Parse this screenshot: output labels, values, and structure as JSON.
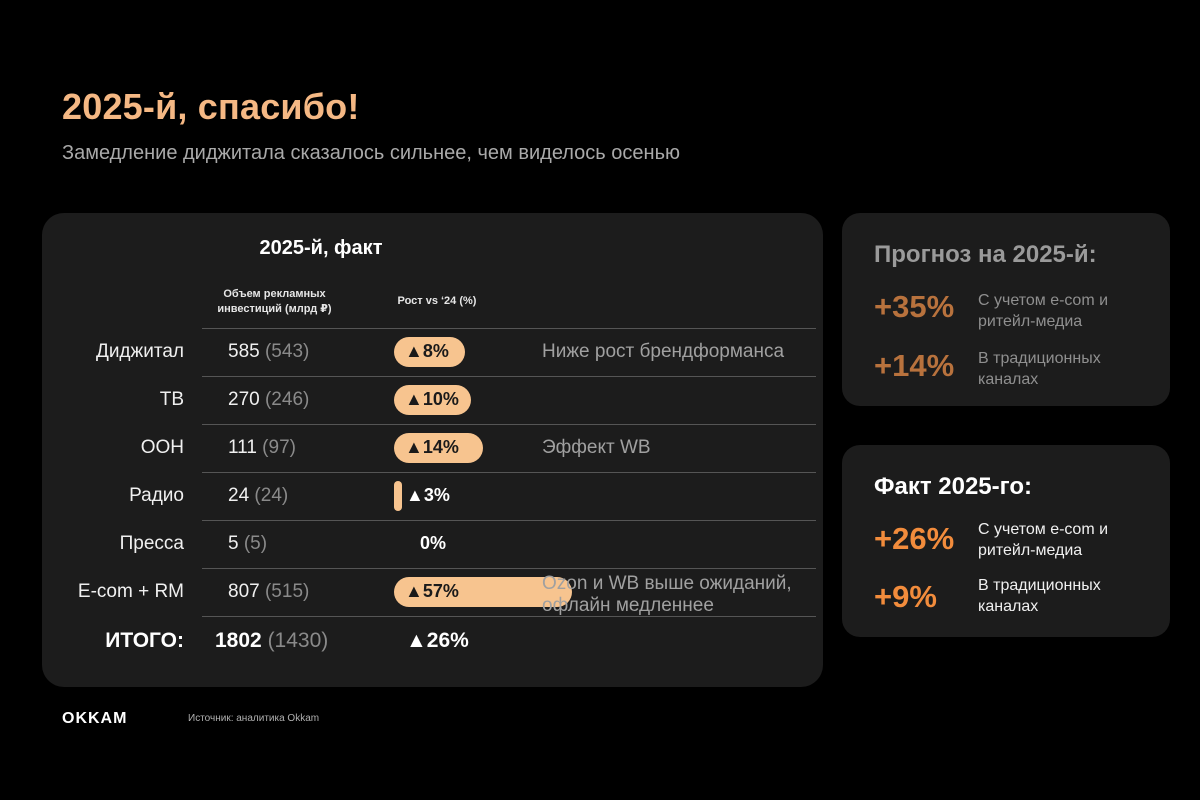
{
  "title": "2025-й, спасибо!",
  "subtitle": "Замедление диджитала сказалось сильнее, чем виделось осенью",
  "colors": {
    "accent": "#f5b884",
    "pill": "#f7c48f",
    "fact_accent": "#f28c3c",
    "forecast_accent": "#b8723d",
    "panel": "#1c1c1c"
  },
  "table": {
    "heading": "2025-й, факт",
    "col_value_header": "Объем рекламных инвестиций (млрд ₽)",
    "col_growth_header": "Рост  vs ‘24 (%)",
    "rows": [
      {
        "name": "Диджитал",
        "value": "585",
        "prev": "(543)",
        "growth_label": "▲8%",
        "growth_pct": 8,
        "note": "Ниже рост брендформанса"
      },
      {
        "name": "ТВ",
        "value": "270",
        "prev": "(246)",
        "growth_label": "▲10%",
        "growth_pct": 10,
        "note": ""
      },
      {
        "name": "OOH",
        "value": "111",
        "prev": "(97)",
        "growth_label": "▲14%",
        "growth_pct": 14,
        "note": "Эффект WB"
      },
      {
        "name": "Радио",
        "value": "24",
        "prev": "(24)",
        "growth_label": "▲3%",
        "growth_pct": 3,
        "note": ""
      },
      {
        "name": "Пресса",
        "value": "5",
        "prev": "(5)",
        "growth_label": "0%",
        "growth_pct": 0,
        "note": ""
      },
      {
        "name": "E-com + RM",
        "value": "807",
        "prev": "(515)",
        "growth_label": "▲57%",
        "growth_pct": 57,
        "note": "Ozon и WB выше ожиданий, офлайн медленнее"
      }
    ],
    "total": {
      "name": "ИТОГО:",
      "value": "1802",
      "prev": "(1430)",
      "growth_label": "▲26%"
    }
  },
  "forecast_card": {
    "title": "Прогноз на 2025-й:",
    "metrics": [
      {
        "value": "+35%",
        "label": "С учетом e-com и ритейл-медиа"
      },
      {
        "value": "+14%",
        "label": "В традиционных каналах"
      }
    ]
  },
  "fact_card": {
    "title": "Факт 2025-го:",
    "metrics": [
      {
        "value": "+26%",
        "label": "С учетом e-com и ритейл-медиа"
      },
      {
        "value": "+9%",
        "label": "В традиционных каналах"
      }
    ]
  },
  "footer": {
    "logo": "OKKAM",
    "source": "Источник: аналитика Okkam"
  }
}
